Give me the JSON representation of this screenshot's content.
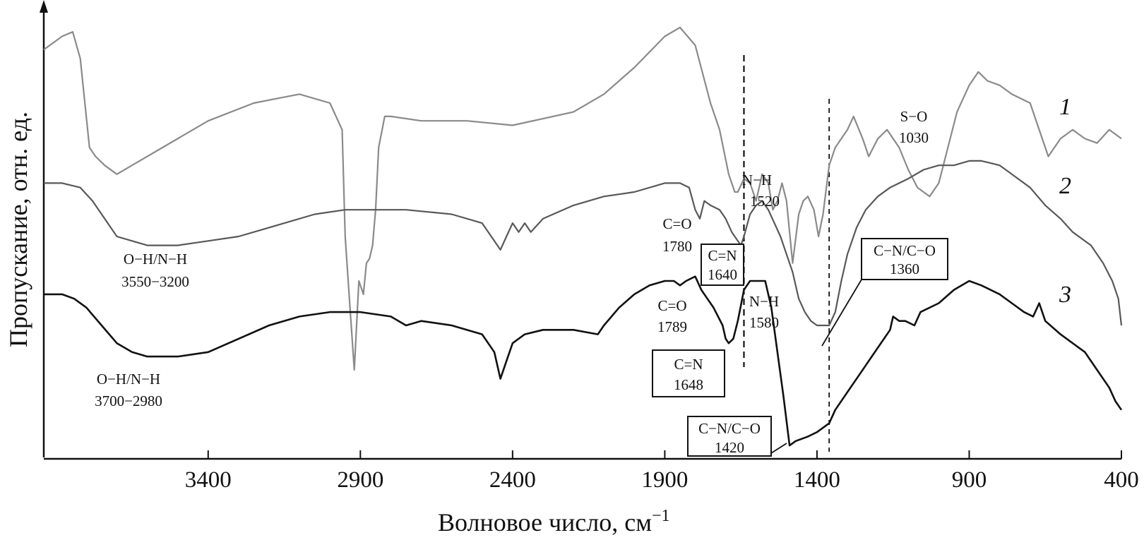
{
  "chart_data": {
    "type": "line",
    "xlabel": "Волновое число, см",
    "xlabel_sup": "−1",
    "ylabel": "Пропускание, отн. ед.",
    "xlim": [
      3940,
      400
    ],
    "x_reversed": true,
    "x_ticks": [
      3400,
      2900,
      2400,
      1900,
      1400,
      900,
      400
    ],
    "y_units": "relative (arbitrary)",
    "ylim": [
      0,
      100
    ],
    "grid": false,
    "legend": "curve numbers at right end",
    "series": [
      {
        "name": "1",
        "color": "#8a8a8a",
        "points": [
          [
            3940,
            92
          ],
          [
            3880,
            95
          ],
          [
            3845,
            96
          ],
          [
            3820,
            90
          ],
          [
            3790,
            70
          ],
          [
            3770,
            68
          ],
          [
            3740,
            66
          ],
          [
            3700,
            64
          ],
          [
            3650,
            66
          ],
          [
            3550,
            70
          ],
          [
            3400,
            76
          ],
          [
            3250,
            80
          ],
          [
            3100,
            82
          ],
          [
            3000,
            80
          ],
          [
            2960,
            74
          ],
          [
            2950,
            50
          ],
          [
            2935,
            35
          ],
          [
            2920,
            20
          ],
          [
            2905,
            40
          ],
          [
            2890,
            37
          ],
          [
            2880,
            44
          ],
          [
            2870,
            45
          ],
          [
            2860,
            48
          ],
          [
            2850,
            56
          ],
          [
            2840,
            70
          ],
          [
            2820,
            77
          ],
          [
            2800,
            77
          ],
          [
            2700,
            76
          ],
          [
            2550,
            76
          ],
          [
            2400,
            75
          ],
          [
            2200,
            78
          ],
          [
            2100,
            82
          ],
          [
            2000,
            88
          ],
          [
            1900,
            95
          ],
          [
            1850,
            97
          ],
          [
            1800,
            93
          ],
          [
            1750,
            80
          ],
          [
            1720,
            74
          ],
          [
            1690,
            64
          ],
          [
            1670,
            60
          ],
          [
            1660,
            60
          ],
          [
            1640,
            63
          ],
          [
            1620,
            62
          ],
          [
            1600,
            58
          ],
          [
            1580,
            64
          ],
          [
            1560,
            62
          ],
          [
            1545,
            56
          ],
          [
            1530,
            58
          ],
          [
            1515,
            62
          ],
          [
            1500,
            58
          ],
          [
            1480,
            44
          ],
          [
            1460,
            55
          ],
          [
            1445,
            58
          ],
          [
            1430,
            59
          ],
          [
            1410,
            56
          ],
          [
            1395,
            50
          ],
          [
            1380,
            55
          ],
          [
            1360,
            66
          ],
          [
            1340,
            70
          ],
          [
            1300,
            74
          ],
          [
            1280,
            77
          ],
          [
            1250,
            72
          ],
          [
            1230,
            68
          ],
          [
            1200,
            72
          ],
          [
            1170,
            74
          ],
          [
            1130,
            70
          ],
          [
            1100,
            65
          ],
          [
            1070,
            61
          ],
          [
            1030,
            59
          ],
          [
            1000,
            62
          ],
          [
            970,
            70
          ],
          [
            940,
            78
          ],
          [
            900,
            84
          ],
          [
            870,
            87
          ],
          [
            840,
            85
          ],
          [
            800,
            84
          ],
          [
            760,
            82
          ],
          [
            700,
            80
          ],
          [
            660,
            72
          ],
          [
            640,
            68
          ],
          [
            600,
            72
          ],
          [
            560,
            74
          ],
          [
            520,
            72
          ],
          [
            480,
            71
          ],
          [
            440,
            74
          ],
          [
            400,
            72
          ]
        ]
      },
      {
        "name": "2",
        "color": "#585858",
        "points": [
          [
            3940,
            62
          ],
          [
            3880,
            62
          ],
          [
            3820,
            61
          ],
          [
            3780,
            58
          ],
          [
            3740,
            54
          ],
          [
            3700,
            50
          ],
          [
            3650,
            49
          ],
          [
            3600,
            48
          ],
          [
            3500,
            48
          ],
          [
            3400,
            49
          ],
          [
            3300,
            50
          ],
          [
            3200,
            52
          ],
          [
            3050,
            55
          ],
          [
            2950,
            56
          ],
          [
            2850,
            56
          ],
          [
            2750,
            56
          ],
          [
            2600,
            55
          ],
          [
            2500,
            53
          ],
          [
            2460,
            49
          ],
          [
            2440,
            47
          ],
          [
            2420,
            50
          ],
          [
            2400,
            53
          ],
          [
            2380,
            51
          ],
          [
            2360,
            53
          ],
          [
            2340,
            51
          ],
          [
            2300,
            54
          ],
          [
            2200,
            57
          ],
          [
            2100,
            59
          ],
          [
            2000,
            60
          ],
          [
            1900,
            62
          ],
          [
            1850,
            62
          ],
          [
            1820,
            61
          ],
          [
            1800,
            56
          ],
          [
            1785,
            54
          ],
          [
            1770,
            58
          ],
          [
            1750,
            57
          ],
          [
            1720,
            56
          ],
          [
            1700,
            54
          ],
          [
            1680,
            51
          ],
          [
            1660,
            49
          ],
          [
            1650,
            48
          ],
          [
            1640,
            50
          ],
          [
            1620,
            55
          ],
          [
            1600,
            57
          ],
          [
            1580,
            58
          ],
          [
            1560,
            56
          ],
          [
            1540,
            53
          ],
          [
            1520,
            50
          ],
          [
            1500,
            46
          ],
          [
            1480,
            42
          ],
          [
            1460,
            36
          ],
          [
            1440,
            33
          ],
          [
            1420,
            31
          ],
          [
            1400,
            30
          ],
          [
            1380,
            30
          ],
          [
            1360,
            30
          ],
          [
            1340,
            33
          ],
          [
            1320,
            40
          ],
          [
            1300,
            46
          ],
          [
            1270,
            52
          ],
          [
            1240,
            56
          ],
          [
            1200,
            59
          ],
          [
            1160,
            61
          ],
          [
            1100,
            63
          ],
          [
            1050,
            65
          ],
          [
            1000,
            66
          ],
          [
            950,
            66
          ],
          [
            900,
            67
          ],
          [
            860,
            67
          ],
          [
            800,
            66
          ],
          [
            760,
            64
          ],
          [
            700,
            61
          ],
          [
            650,
            57
          ],
          [
            600,
            54
          ],
          [
            560,
            51
          ],
          [
            500,
            48
          ],
          [
            460,
            44
          ],
          [
            430,
            40
          ],
          [
            410,
            36
          ],
          [
            400,
            30
          ]
        ]
      },
      {
        "name": "3",
        "color": "#111111",
        "points": [
          [
            3940,
            37
          ],
          [
            3880,
            37
          ],
          [
            3840,
            36
          ],
          [
            3800,
            34
          ],
          [
            3750,
            30
          ],
          [
            3700,
            26
          ],
          [
            3650,
            24
          ],
          [
            3600,
            23
          ],
          [
            3500,
            23
          ],
          [
            3400,
            24
          ],
          [
            3300,
            27
          ],
          [
            3200,
            30
          ],
          [
            3100,
            32
          ],
          [
            3000,
            33
          ],
          [
            2900,
            33
          ],
          [
            2800,
            32
          ],
          [
            2750,
            30
          ],
          [
            2700,
            31
          ],
          [
            2600,
            30
          ],
          [
            2500,
            28
          ],
          [
            2460,
            24
          ],
          [
            2440,
            18
          ],
          [
            2420,
            22
          ],
          [
            2400,
            26
          ],
          [
            2360,
            28
          ],
          [
            2300,
            29
          ],
          [
            2200,
            29
          ],
          [
            2120,
            28
          ],
          [
            2100,
            30
          ],
          [
            2050,
            34
          ],
          [
            2000,
            37
          ],
          [
            1950,
            39
          ],
          [
            1900,
            40
          ],
          [
            1870,
            40
          ],
          [
            1850,
            39
          ],
          [
            1830,
            40
          ],
          [
            1800,
            41
          ],
          [
            1780,
            38
          ],
          [
            1760,
            36
          ],
          [
            1740,
            34
          ],
          [
            1710,
            30
          ],
          [
            1700,
            27
          ],
          [
            1690,
            26
          ],
          [
            1675,
            27
          ],
          [
            1660,
            31
          ],
          [
            1640,
            38
          ],
          [
            1620,
            40
          ],
          [
            1590,
            40
          ],
          [
            1570,
            40
          ],
          [
            1550,
            34
          ],
          [
            1530,
            24
          ],
          [
            1510,
            14
          ],
          [
            1490,
            3
          ],
          [
            1470,
            4
          ],
          [
            1430,
            5
          ],
          [
            1400,
            6
          ],
          [
            1380,
            7
          ],
          [
            1360,
            8
          ],
          [
            1340,
            11
          ],
          [
            1300,
            15
          ],
          [
            1260,
            19
          ],
          [
            1220,
            23
          ],
          [
            1180,
            27
          ],
          [
            1160,
            29
          ],
          [
            1150,
            32
          ],
          [
            1130,
            31
          ],
          [
            1110,
            31
          ],
          [
            1080,
            30
          ],
          [
            1060,
            33
          ],
          [
            1000,
            35
          ],
          [
            950,
            38
          ],
          [
            900,
            40
          ],
          [
            860,
            39
          ],
          [
            800,
            37
          ],
          [
            760,
            35
          ],
          [
            720,
            33
          ],
          [
            690,
            32
          ],
          [
            670,
            35
          ],
          [
            650,
            31
          ],
          [
            600,
            28
          ],
          [
            560,
            26
          ],
          [
            520,
            24
          ],
          [
            480,
            20
          ],
          [
            440,
            16
          ],
          [
            420,
            13
          ],
          [
            400,
            11
          ]
        ]
      }
    ],
    "dashed_lines_x": [
      1640,
      1360
    ],
    "curve_labels": [
      "1",
      "2",
      "3"
    ],
    "annotations": [
      {
        "text": "S−O",
        "sub": "1030",
        "boxed": false
      },
      {
        "text": "N−H",
        "sub": "1520",
        "boxed": false
      },
      {
        "text": "C=O",
        "sub": "1780",
        "boxed": false
      },
      {
        "text": "C=N",
        "sub": "1640",
        "boxed": true
      },
      {
        "text": "C−N/C−O",
        "sub": "1360",
        "boxed": true
      },
      {
        "text": "O−H/N−H",
        "sub": "3550−3200",
        "boxed": false
      },
      {
        "text": "C=O",
        "sub": "1789",
        "boxed": false
      },
      {
        "text": "N−H",
        "sub": "1580",
        "boxed": false
      },
      {
        "text": "C=N",
        "sub": "1648",
        "boxed": true
      },
      {
        "text": "O−H/N−H",
        "sub": "3700−2980",
        "boxed": false
      },
      {
        "text": "C−N/C−O",
        "sub": "1420",
        "boxed": true
      }
    ]
  }
}
